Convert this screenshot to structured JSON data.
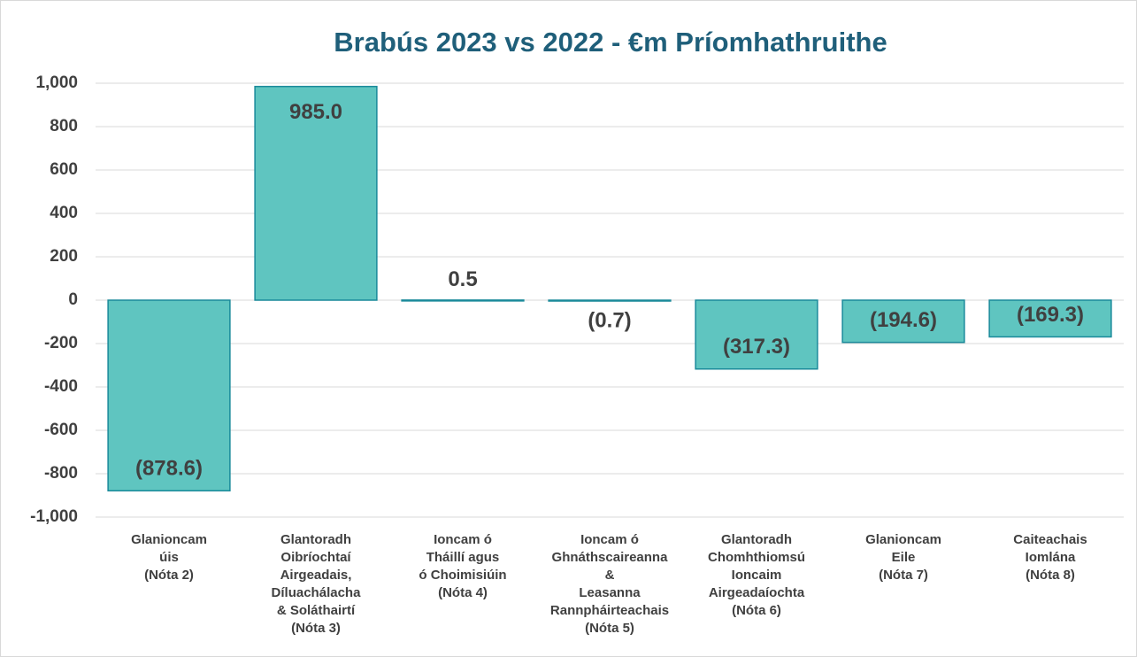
{
  "chart_data": {
    "type": "bar",
    "title": "Brabús 2023 vs 2022 - €m Príomhathruithe",
    "categories": [
      "Glanioncam\núis\n(Nóta 2)",
      "Glantoradh\nOibríochtaí\nAirgeadais,\nDíluachálacha\n& Soláthairtí\n(Nóta 3)",
      "Ioncam ó\nTháillí agus\nó Choimisiúin\n(Nóta 4)",
      "Ioncam ó\nGhnáthscaireanna\n&\nLeasanna\nRannpháirteachais\n(Nóta 5)",
      "Glantoradh\nChomhthiomsú\nIoncaim\nAirgeadaíochta\n(Nóta 6)",
      "Glanioncam\nEile\n(Nóta 7)",
      "Caiteachais\nIomlána\n(Nóta 8)"
    ],
    "values": [
      -878.6,
      985.0,
      0.5,
      -0.7,
      -317.3,
      -194.6,
      -169.3
    ],
    "value_labels": [
      "(878.6)",
      "985.0",
      "0.5",
      "(0.7)",
      "(317.3)",
      "(194.6)",
      "(169.3)"
    ],
    "color": "#5fc5c0",
    "edge_color": "#1a8a9a",
    "ylim": [
      -1000,
      1000
    ],
    "yticks": [
      {
        "value": -1000,
        "label": "-1,000"
      },
      -800,
      -600,
      -400,
      -200,
      0,
      200,
      400,
      600,
      800,
      {
        "value": 1000,
        "label": "1,000"
      }
    ],
    "grid": true
  }
}
